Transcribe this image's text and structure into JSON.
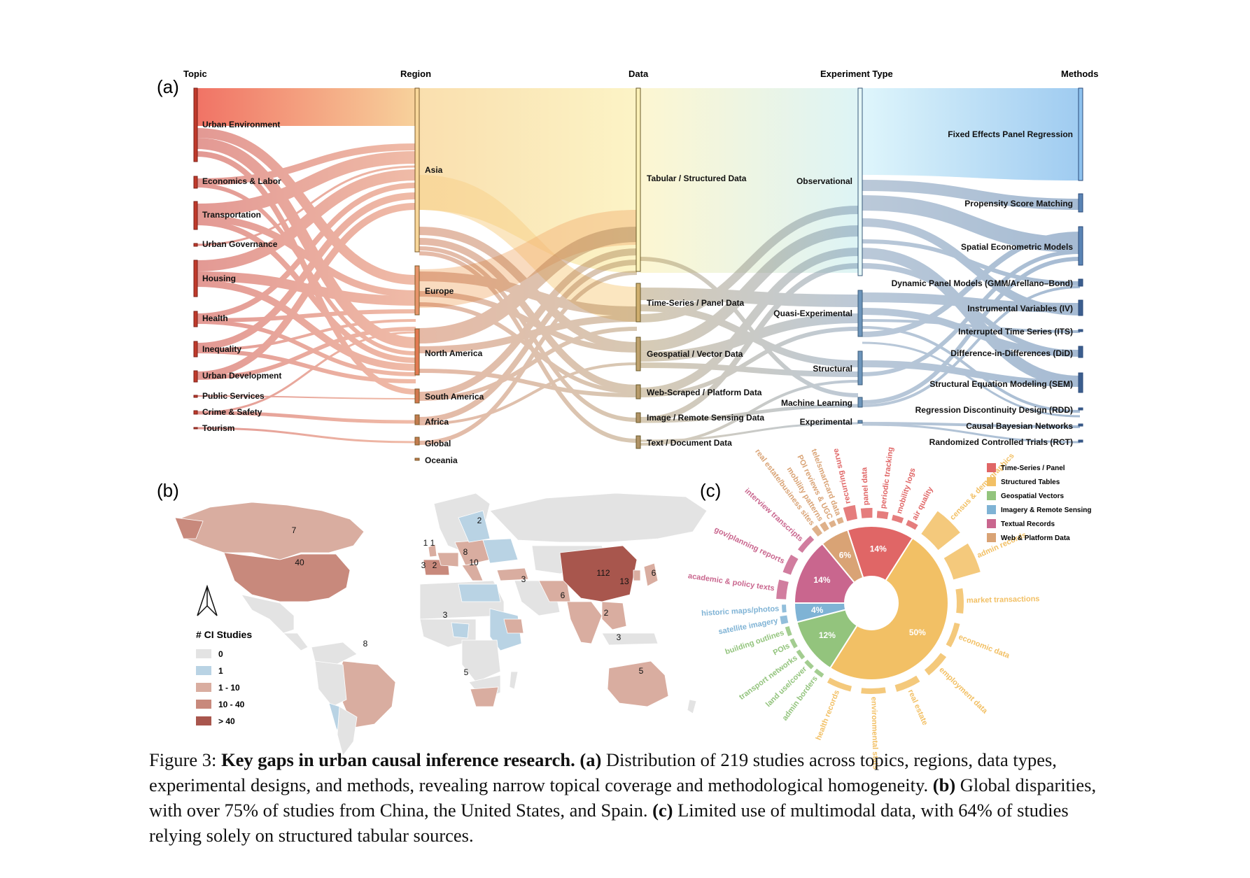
{
  "panel_labels": [
    "(a)",
    "(b)",
    "(c)"
  ],
  "sankey": {
    "column_headers": [
      "Topic",
      "Region",
      "Data",
      "Experiment Type",
      "Methods"
    ],
    "topics": [
      "Urban Environment",
      "Economics & Labor",
      "Transportation",
      "Urban Governance",
      "Housing",
      "Health",
      "Inequality",
      "Urban Development",
      "Public Services",
      "Crime & Safety",
      "Tourism"
    ],
    "regions": [
      "Asia",
      "Europe",
      "North America",
      "South America",
      "Africa",
      "Global",
      "Oceania"
    ],
    "data_types": [
      "Tabular / Structured Data",
      "Time-Series / Panel Data",
      "Geospatial / Vector Data",
      "Web-Scraped / Platform Data",
      "Image / Remote Sensing Data",
      "Text / Document Data"
    ],
    "experiment_types": [
      "Observational",
      "Quasi-Experimental",
      "Structural",
      "Machine Learning",
      "Experimental"
    ],
    "methods": [
      "Fixed Effects Panel Regression",
      "Propensity Score Matching",
      "Spatial Econometric Models",
      "Dynamic Panel Models (GMM/Arellano–Bond)",
      "Instrumental Variables (IV)",
      "Interrupted Time Series (ITS)",
      "Difference-in-Differences (DiD)",
      "Structural Equation Modeling (SEM)",
      "Regression Discontinuity Design (RDD)",
      "Causal Bayesian Networks",
      "Randomized Controlled Trials (RCT)"
    ]
  },
  "map": {
    "legend_title": "# CI Studies",
    "legend": [
      {
        "label": "0",
        "color": "#e3e3e3"
      },
      {
        "label": "1",
        "color": "#b9d3e4"
      },
      {
        "label": "1 - 10",
        "color": "#d9ada0"
      },
      {
        "label": "10 - 40",
        "color": "#c8897c"
      },
      {
        "label": "> 40",
        "color": "#a8564d"
      }
    ],
    "counts": [
      "7",
      "40",
      "8",
      "1",
      "1",
      "3",
      "2",
      "8",
      "10",
      "2",
      "3",
      "3",
      "112",
      "13",
      "6",
      "6",
      "2",
      "3",
      "5",
      "5"
    ]
  },
  "sunburst": {
    "legend": [
      {
        "label": "Time-Series / Panel",
        "color": "#e06666"
      },
      {
        "label": "Structured Tables",
        "color": "#f2c065"
      },
      {
        "label": "Geospatial Vectors",
        "color": "#93c47d"
      },
      {
        "label": "Imagery & Remote Sensing",
        "color": "#7fb3d5"
      },
      {
        "label": "Textual Records",
        "color": "#c9668e"
      },
      {
        "label": "Web & Platform Data",
        "color": "#d9a375"
      }
    ],
    "inner": [
      {
        "category": "Time-Series / Panel",
        "percent_label": "14%",
        "value": 14
      },
      {
        "category": "Structured Tables",
        "percent_label": "50%",
        "value": 50
      },
      {
        "category": "Geospatial Vectors",
        "percent_label": "12%",
        "value": 12
      },
      {
        "category": "Imagery & Remote Sensing",
        "percent_label": "4%",
        "value": 4
      },
      {
        "category": "Textual Records",
        "percent_label": "14%",
        "value": 14
      },
      {
        "category": "Web & Platform Data",
        "percent_label": "6%",
        "value": 6
      }
    ],
    "outer_labels": [
      {
        "category": "Time-Series / Panel",
        "label": "recurring surve"
      },
      {
        "category": "Time-Series / Panel",
        "label": "panel data"
      },
      {
        "category": "Time-Series / Panel",
        "label": "periodic tracking"
      },
      {
        "category": "Time-Series / Panel",
        "label": "mobility logs"
      },
      {
        "category": "Time-Series / Panel",
        "label": "air quality"
      },
      {
        "category": "Structured Tables",
        "label": "census & demographics"
      },
      {
        "category": "Structured Tables",
        "label": "admin records"
      },
      {
        "category": "Structured Tables",
        "label": "market transactions"
      },
      {
        "category": "Structured Tables",
        "label": "economic data"
      },
      {
        "category": "Structured Tables",
        "label": "employment data"
      },
      {
        "category": "Structured Tables",
        "label": "real estate"
      },
      {
        "category": "Structured Tables",
        "label": "environmental stats"
      },
      {
        "category": "Structured Tables",
        "label": "health records"
      },
      {
        "category": "Geospatial Vectors",
        "label": "admin borders"
      },
      {
        "category": "Geospatial Vectors",
        "label": "land use/cover"
      },
      {
        "category": "Geospatial Vectors",
        "label": "transport networks"
      },
      {
        "category": "Geospatial Vectors",
        "label": "POIs"
      },
      {
        "category": "Geospatial Vectors",
        "label": "building outlines"
      },
      {
        "category": "Imagery & Remote Sensing",
        "label": "satellite imagery"
      },
      {
        "category": "Imagery & Remote Sensing",
        "label": "historic maps/photos"
      },
      {
        "category": "Textual Records",
        "label": "academic & policy texts"
      },
      {
        "category": "Textual Records",
        "label": "gov/planning reports"
      },
      {
        "category": "Textual Records",
        "label": "interview transcripts"
      },
      {
        "category": "Web & Platform Data",
        "label": "real estate/business sites"
      },
      {
        "category": "Web & Platform Data",
        "label": "mobility patterns"
      },
      {
        "category": "Web & Platform Data",
        "label": "POI reviews & UGC"
      },
      {
        "category": "Web & Platform Data",
        "label": "tele/smartcard data"
      }
    ]
  },
  "caption": {
    "prefix": "Figure 3: ",
    "title": "Key gaps in urban causal inference research.",
    "a_tag": "(a)",
    "a_text": " Distribution of 219 studies across topics, regions, data types, experimental designs, and methods, revealing narrow topical coverage and methodological homogeneity. ",
    "b_tag": "(b)",
    "b_text": " Global disparities, with over 75% of studies from China, the United States, and Spain. ",
    "c_tag": "(c)",
    "c_text": " Limited use of multimodal data, with 64% of studies relying solely on structured tabular sources."
  }
}
